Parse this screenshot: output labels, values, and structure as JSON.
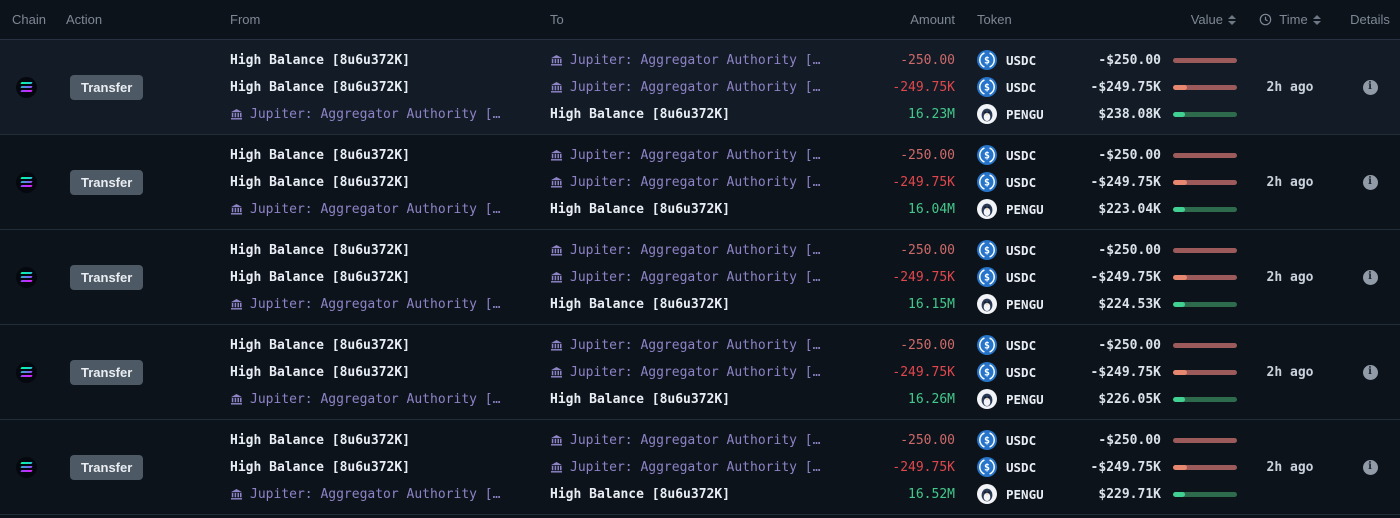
{
  "table": {
    "columns": {
      "chain": "Chain",
      "action": "Action",
      "from": "From",
      "to": "To",
      "amount": "Amount",
      "token": "Token",
      "value": "Value",
      "time": "Time",
      "details": "Details"
    }
  },
  "colors": {
    "background": "#0d131b",
    "row_highlight": "#131b26",
    "entity_purple": "#8d83c6",
    "amount_red": "#e0484d",
    "amount_red_soft": "#cd6a6a",
    "amount_green": "#43c98b",
    "usdc_blue": "#2775ca",
    "badge_grey": "#4d5964",
    "bar_neg_track": "#9c5a5a",
    "bar_neg_fill": "#e8876f",
    "bar_pos_track": "#2e6b4d",
    "bar_pos_fill": "#40d092"
  },
  "icons": {
    "chain": "solana-icon",
    "entity": "bank-icon",
    "time_header": "clock-icon",
    "details": "info-icon",
    "sort": "sort-arrows-icon"
  },
  "rows": [
    {
      "chain": "solana",
      "action": "Transfer",
      "time": "2h ago",
      "highlight": true,
      "legs": [
        {
          "from": {
            "label": "High Balance [8u6u372K]",
            "entity": false
          },
          "to": {
            "label": "Jupiter: Aggregator Authority […",
            "entity": true
          },
          "amount": {
            "text": "-250.00",
            "tone": "red-soft"
          },
          "token": "USDC",
          "value": {
            "text": "-$250.00",
            "tone": "neg",
            "fill_pct": 0
          }
        },
        {
          "from": {
            "label": "High Balance [8u6u372K]",
            "entity": false
          },
          "to": {
            "label": "Jupiter: Aggregator Authority […",
            "entity": true
          },
          "amount": {
            "text": "-249.75K",
            "tone": "red"
          },
          "token": "USDC",
          "value": {
            "text": "-$249.75K",
            "tone": "neg",
            "fill_pct": 22
          }
        },
        {
          "from": {
            "label": "Jupiter: Aggregator Authority […",
            "entity": true
          },
          "to": {
            "label": "High Balance [8u6u372K]",
            "entity": false
          },
          "amount": {
            "text": "16.23M",
            "tone": "green"
          },
          "token": "PENGU",
          "value": {
            "text": "$238.08K",
            "tone": "pos",
            "fill_pct": 19
          }
        }
      ]
    },
    {
      "chain": "solana",
      "action": "Transfer",
      "time": "2h ago",
      "highlight": false,
      "legs": [
        {
          "from": {
            "label": "High Balance [8u6u372K]",
            "entity": false
          },
          "to": {
            "label": "Jupiter: Aggregator Authority […",
            "entity": true
          },
          "amount": {
            "text": "-250.00",
            "tone": "red-soft"
          },
          "token": "USDC",
          "value": {
            "text": "-$250.00",
            "tone": "neg",
            "fill_pct": 0
          }
        },
        {
          "from": {
            "label": "High Balance [8u6u372K]",
            "entity": false
          },
          "to": {
            "label": "Jupiter: Aggregator Authority […",
            "entity": true
          },
          "amount": {
            "text": "-249.75K",
            "tone": "red"
          },
          "token": "USDC",
          "value": {
            "text": "-$249.75K",
            "tone": "neg",
            "fill_pct": 22
          }
        },
        {
          "from": {
            "label": "Jupiter: Aggregator Authority […",
            "entity": true
          },
          "to": {
            "label": "High Balance [8u6u372K]",
            "entity": false
          },
          "amount": {
            "text": "16.04M",
            "tone": "green"
          },
          "token": "PENGU",
          "value": {
            "text": "$223.04K",
            "tone": "pos",
            "fill_pct": 18
          }
        }
      ]
    },
    {
      "chain": "solana",
      "action": "Transfer",
      "time": "2h ago",
      "highlight": false,
      "legs": [
        {
          "from": {
            "label": "High Balance [8u6u372K]",
            "entity": false
          },
          "to": {
            "label": "Jupiter: Aggregator Authority […",
            "entity": true
          },
          "amount": {
            "text": "-250.00",
            "tone": "red-soft"
          },
          "token": "USDC",
          "value": {
            "text": "-$250.00",
            "tone": "neg",
            "fill_pct": 0
          }
        },
        {
          "from": {
            "label": "High Balance [8u6u372K]",
            "entity": false
          },
          "to": {
            "label": "Jupiter: Aggregator Authority […",
            "entity": true
          },
          "amount": {
            "text": "-249.75K",
            "tone": "red"
          },
          "token": "USDC",
          "value": {
            "text": "-$249.75K",
            "tone": "neg",
            "fill_pct": 22
          }
        },
        {
          "from": {
            "label": "Jupiter: Aggregator Authority […",
            "entity": true
          },
          "to": {
            "label": "High Balance [8u6u372K]",
            "entity": false
          },
          "amount": {
            "text": "16.15M",
            "tone": "green"
          },
          "token": "PENGU",
          "value": {
            "text": "$224.53K",
            "tone": "pos",
            "fill_pct": 18
          }
        }
      ]
    },
    {
      "chain": "solana",
      "action": "Transfer",
      "time": "2h ago",
      "highlight": false,
      "legs": [
        {
          "from": {
            "label": "High Balance [8u6u372K]",
            "entity": false
          },
          "to": {
            "label": "Jupiter: Aggregator Authority […",
            "entity": true
          },
          "amount": {
            "text": "-250.00",
            "tone": "red-soft"
          },
          "token": "USDC",
          "value": {
            "text": "-$250.00",
            "tone": "neg",
            "fill_pct": 0
          }
        },
        {
          "from": {
            "label": "High Balance [8u6u372K]",
            "entity": false
          },
          "to": {
            "label": "Jupiter: Aggregator Authority […",
            "entity": true
          },
          "amount": {
            "text": "-249.75K",
            "tone": "red"
          },
          "token": "USDC",
          "value": {
            "text": "-$249.75K",
            "tone": "neg",
            "fill_pct": 22
          }
        },
        {
          "from": {
            "label": "Jupiter: Aggregator Authority […",
            "entity": true
          },
          "to": {
            "label": "High Balance [8u6u372K]",
            "entity": false
          },
          "amount": {
            "text": "16.26M",
            "tone": "green"
          },
          "token": "PENGU",
          "value": {
            "text": "$226.05K",
            "tone": "pos",
            "fill_pct": 18
          }
        }
      ]
    },
    {
      "chain": "solana",
      "action": "Transfer",
      "time": "2h ago",
      "highlight": false,
      "legs": [
        {
          "from": {
            "label": "High Balance [8u6u372K]",
            "entity": false
          },
          "to": {
            "label": "Jupiter: Aggregator Authority […",
            "entity": true
          },
          "amount": {
            "text": "-250.00",
            "tone": "red-soft"
          },
          "token": "USDC",
          "value": {
            "text": "-$250.00",
            "tone": "neg",
            "fill_pct": 0
          }
        },
        {
          "from": {
            "label": "High Balance [8u6u372K]",
            "entity": false
          },
          "to": {
            "label": "Jupiter: Aggregator Authority […",
            "entity": true
          },
          "amount": {
            "text": "-249.75K",
            "tone": "red"
          },
          "token": "USDC",
          "value": {
            "text": "-$249.75K",
            "tone": "neg",
            "fill_pct": 22
          }
        },
        {
          "from": {
            "label": "Jupiter: Aggregator Authority […",
            "entity": true
          },
          "to": {
            "label": "High Balance [8u6u372K]",
            "entity": false
          },
          "amount": {
            "text": "16.52M",
            "tone": "green"
          },
          "token": "PENGU",
          "value": {
            "text": "$229.71K",
            "tone": "pos",
            "fill_pct": 18
          }
        }
      ]
    }
  ]
}
